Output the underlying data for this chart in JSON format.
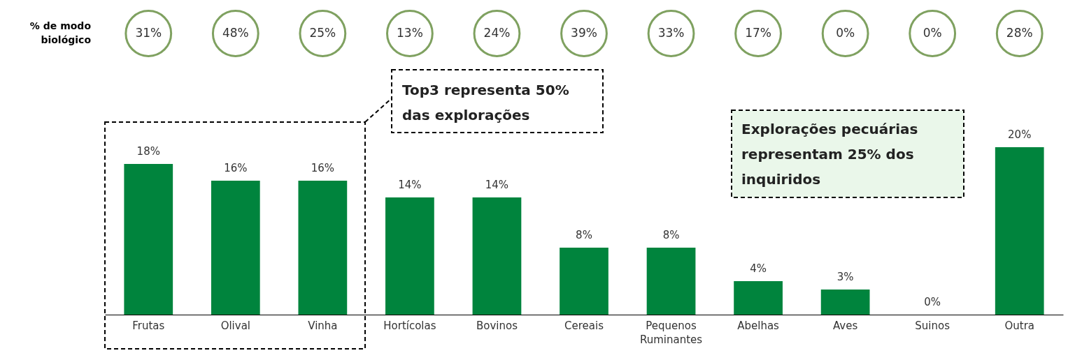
{
  "chart_data": {
    "type": "bar",
    "categories": [
      "Frutas",
      "Olival",
      "Vinha",
      "Hortícolas",
      "Bovinos",
      "Cereais",
      "Pequenos Ruminantes",
      "Abelhas",
      "Aves",
      "Suinos",
      "Outra"
    ],
    "values": [
      18,
      16,
      16,
      14,
      14,
      8,
      8,
      4,
      3,
      0,
      20
    ],
    "value_labels": [
      "18%",
      "16%",
      "16%",
      "14%",
      "14%",
      "8%",
      "8%",
      "4%",
      "3%",
      "0%",
      "20%"
    ],
    "color": "#00843d",
    "tick_labels": "x",
    "annotations": [
      "% de modo biológico",
      "31%",
      "48%",
      "25%",
      "13%",
      "24%",
      "39%",
      "33%",
      "17%",
      "0%",
      "0%",
      "28%",
      "Top3 representa 50% das explorações",
      "Explorações pecuárias representam 25% dos inquiridos"
    ]
  }
}
